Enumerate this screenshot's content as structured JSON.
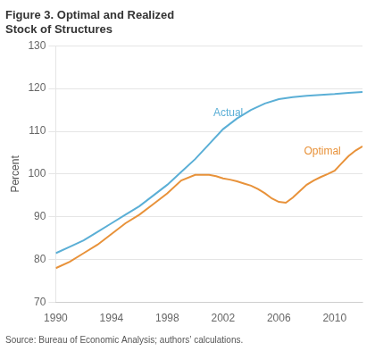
{
  "chart_data": {
    "type": "line",
    "title": [
      "Figure 3. Optimal and Realized",
      "Stock of Structures"
    ],
    "ylabel": "Percent",
    "source": "Source: Bureau of Economic Analysis; authors’ calculations.",
    "xlim": [
      1990,
      2012
    ],
    "ylim": [
      70,
      130
    ],
    "xticks": [
      1990,
      1994,
      1998,
      2002,
      2006,
      2010
    ],
    "yticks": [
      70,
      80,
      90,
      100,
      110,
      120,
      130
    ],
    "grid": "y",
    "series": [
      {
        "name": "Actual",
        "color": "#5bafd6",
        "x": [
          1990,
          1991,
          1992,
          1993,
          1994,
          1995,
          1996,
          1997,
          1998,
          1999,
          2000,
          2001,
          2002,
          2003,
          2004,
          2005,
          2006,
          2007,
          2008,
          2009,
          2010,
          2011,
          2012
        ],
        "values": [
          81.5,
          83.0,
          84.5,
          86.5,
          88.5,
          90.5,
          92.5,
          95.0,
          97.5,
          100.5,
          103.5,
          107.0,
          110.5,
          113.0,
          115.0,
          116.5,
          117.5,
          118.0,
          118.3,
          118.5,
          118.7,
          119.0,
          119.2
        ]
      },
      {
        "name": "Optimal",
        "color": "#e8923a",
        "x": [
          1990,
          1991,
          1992,
          1993,
          1994,
          1995,
          1996,
          1997,
          1998,
          1999,
          2000,
          2001,
          2001.5,
          2002,
          2002.5,
          2003,
          2003.5,
          2004,
          2004.5,
          2005,
          2005.5,
          2006,
          2006.5,
          2007,
          2007.5,
          2008,
          2008.5,
          2009,
          2009.5,
          2010,
          2010.5,
          2011,
          2011.5,
          2012
        ],
        "values": [
          78.0,
          79.5,
          81.5,
          83.5,
          86.0,
          88.5,
          90.5,
          93.0,
          95.5,
          98.5,
          99.8,
          99.8,
          99.5,
          99.0,
          98.7,
          98.3,
          97.8,
          97.3,
          96.5,
          95.5,
          94.3,
          93.5,
          93.3,
          94.5,
          96.0,
          97.5,
          98.5,
          99.3,
          100.0,
          100.8,
          102.5,
          104.2,
          105.5,
          106.5
        ]
      }
    ],
    "annotations": [
      {
        "text": "Actual",
        "x": 2001.3,
        "y": 113.5,
        "color": "#5bafd6"
      },
      {
        "text": "Optimal",
        "x": 2007.8,
        "y": 104.5,
        "color": "#e8923a"
      }
    ]
  }
}
